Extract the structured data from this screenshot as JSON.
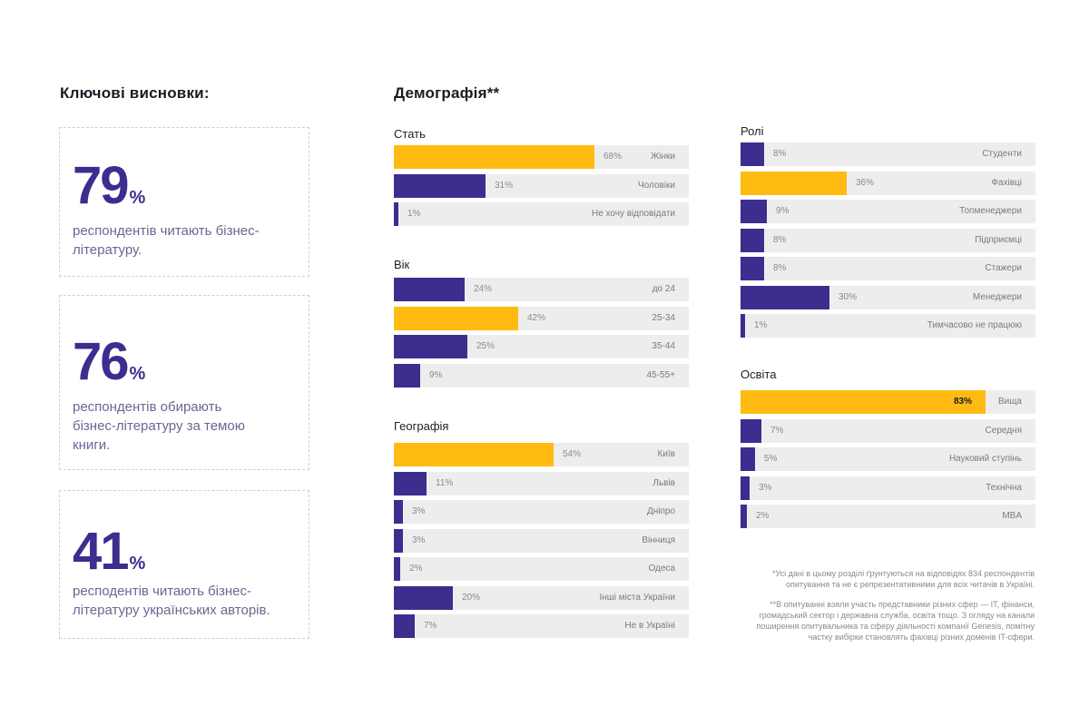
{
  "key_findings": {
    "title": "Ключові висновки:",
    "stats": [
      {
        "value": "79",
        "unit": "%",
        "text": "респондентів читають бізнес-літературу."
      },
      {
        "value": "76",
        "unit": "%",
        "text": "респондентів обирають бізнес-літературу за темою книги."
      },
      {
        "value": "41",
        "unit": "%",
        "text": "респодентів читають бізнес-літературу українських авторів."
      }
    ]
  },
  "demographics": {
    "title": "Демографія**"
  },
  "colors": {
    "primary": "#3d2d8f",
    "highlight": "#ffbb12",
    "track": "#ededed"
  },
  "chart_data": [
    {
      "id": "gender",
      "type": "bar",
      "orientation": "horizontal",
      "title": "Стать",
      "categories": [
        "Жінки",
        "Чоловіки",
        "Не хочу відповідати"
      ],
      "values": [
        68,
        31,
        1
      ],
      "labels": [
        "68%",
        "31%",
        "1%"
      ],
      "highlight": [
        0
      ],
      "xlim": [
        0,
        100
      ]
    },
    {
      "id": "age",
      "type": "bar",
      "orientation": "horizontal",
      "title": "Вік",
      "categories": [
        "до 24",
        "25-34",
        "35-44",
        "45-55+"
      ],
      "values": [
        24,
        42,
        25,
        9
      ],
      "labels": [
        "24%",
        "42%",
        "25%",
        "9%"
      ],
      "highlight": [
        1
      ],
      "xlim": [
        0,
        100
      ]
    },
    {
      "id": "geo",
      "type": "bar",
      "orientation": "horizontal",
      "title": "Географія",
      "categories": [
        "Київ",
        "Львів",
        "Дніпро",
        "Вінниця",
        "Одеса",
        "Інші міста України",
        "Не в Україні"
      ],
      "values": [
        54,
        11,
        3,
        3,
        2,
        20,
        7
      ],
      "labels": [
        "54%",
        "11%",
        "3%",
        "3%",
        "2%",
        "20%",
        "7%"
      ],
      "highlight": [
        0
      ],
      "xlim": [
        0,
        100
      ]
    },
    {
      "id": "roles",
      "type": "bar",
      "orientation": "horizontal",
      "title": "Ролі",
      "categories": [
        "Студенти",
        "Фахівці",
        "Топменеджери",
        "Підприємці",
        "Стажери",
        "Менеджери",
        "Тимчасово не працюю"
      ],
      "values": [
        8,
        36,
        9,
        8,
        8,
        30,
        1
      ],
      "labels": [
        "8%",
        "36%",
        "9%",
        "8%",
        "8%",
        "30%",
        "1%"
      ],
      "highlight": [
        1
      ],
      "xlim": [
        0,
        100
      ]
    },
    {
      "id": "education",
      "type": "bar",
      "orientation": "horizontal",
      "title": "Освіта",
      "categories": [
        "Вища",
        "Середня",
        "Науковий ступінь",
        "Технічна",
        "MBA"
      ],
      "values": [
        83,
        7,
        5,
        3,
        2
      ],
      "labels": [
        "83%",
        "7%",
        "5%",
        "3%",
        "2%"
      ],
      "highlight": [
        0
      ],
      "xlim": [
        0,
        100
      ]
    }
  ],
  "footnotes": {
    "note1": "*Усі дані в цьому розділі ґрунтуються на відповідях 834 респондентів опитування та не є репрезентативними для всіх читачів в Україні.",
    "note2": "**В опитуванні взяли участь представники різних сфер — IT, фінанси, громадський сектор і державна служба, освіта тощо. З огляду на канали поширення опитувальника та сферу діяльності компанії Genesis, помітну частку вибірки становлять фахівці різних доменів IT-сфери."
  }
}
